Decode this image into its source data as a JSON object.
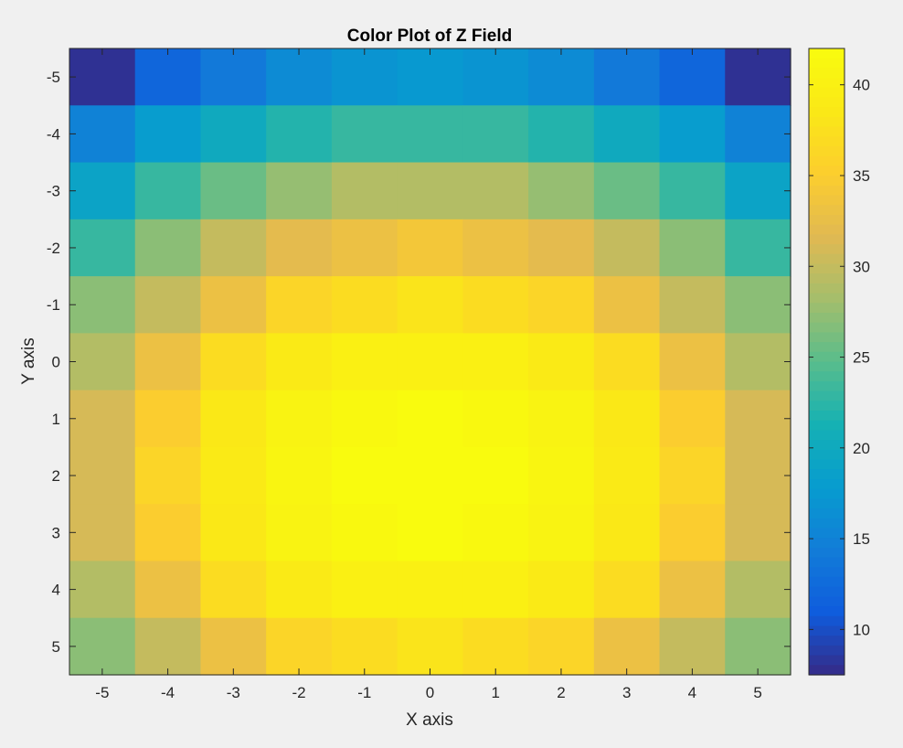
{
  "chart_data": {
    "type": "heatmap",
    "title": "Color Plot of Z Field",
    "xlabel": "X axis",
    "ylabel": "Y axis",
    "x": [
      -5,
      -4,
      -3,
      -2,
      -1,
      0,
      1,
      2,
      3,
      4,
      5
    ],
    "y": [
      -5,
      -4,
      -3,
      -2,
      -1,
      0,
      1,
      2,
      3,
      4,
      5
    ],
    "x_tick_labels": [
      "-5",
      "-4",
      "-3",
      "-2",
      "-1",
      "0",
      "1",
      "2",
      "3",
      "4",
      "5"
    ],
    "y_tick_labels": [
      "-5",
      "-4",
      "-3",
      "-2",
      "-1",
      "0",
      "1",
      "2",
      "3",
      "4",
      "5"
    ],
    "y_direction": "reversed (-5 at top)",
    "colormap": "parula",
    "clim": [
      7.5,
      42
    ],
    "colorbar_ticks": [
      10,
      15,
      20,
      25,
      30,
      35,
      40
    ],
    "colorbar_tick_labels": [
      "10",
      "15",
      "20",
      "25",
      "30",
      "35",
      "40"
    ],
    "z": [
      [
        8,
        12,
        14,
        16,
        17,
        17.5,
        17,
        16,
        14,
        12,
        8
      ],
      [
        15,
        18,
        20,
        22,
        23,
        23,
        23,
        22,
        20,
        18,
        15
      ],
      [
        19,
        23,
        25.5,
        27.5,
        29,
        29,
        29,
        27.5,
        25.5,
        23,
        19
      ],
      [
        23,
        27,
        30,
        32,
        33,
        34,
        33,
        32,
        30,
        27,
        23
      ],
      [
        27,
        30,
        33,
        36,
        37,
        38,
        37,
        36,
        33,
        30,
        27
      ],
      [
        29,
        33,
        37,
        39,
        40,
        40,
        40,
        39,
        37,
        33,
        29
      ],
      [
        31,
        35,
        38.5,
        40.5,
        41.5,
        42,
        41.5,
        40.5,
        38.5,
        35,
        31
      ],
      [
        31,
        36,
        39,
        41,
        42,
        42,
        42,
        41,
        39,
        36,
        31
      ],
      [
        31,
        35,
        38.5,
        40.5,
        41.5,
        42,
        41.5,
        40.5,
        38.5,
        35,
        31
      ],
      [
        29,
        33,
        37,
        39,
        40,
        40,
        40,
        39,
        37,
        33,
        29
      ],
      [
        27,
        30,
        33,
        36,
        37,
        38,
        37,
        36,
        33,
        30,
        27
      ]
    ]
  }
}
